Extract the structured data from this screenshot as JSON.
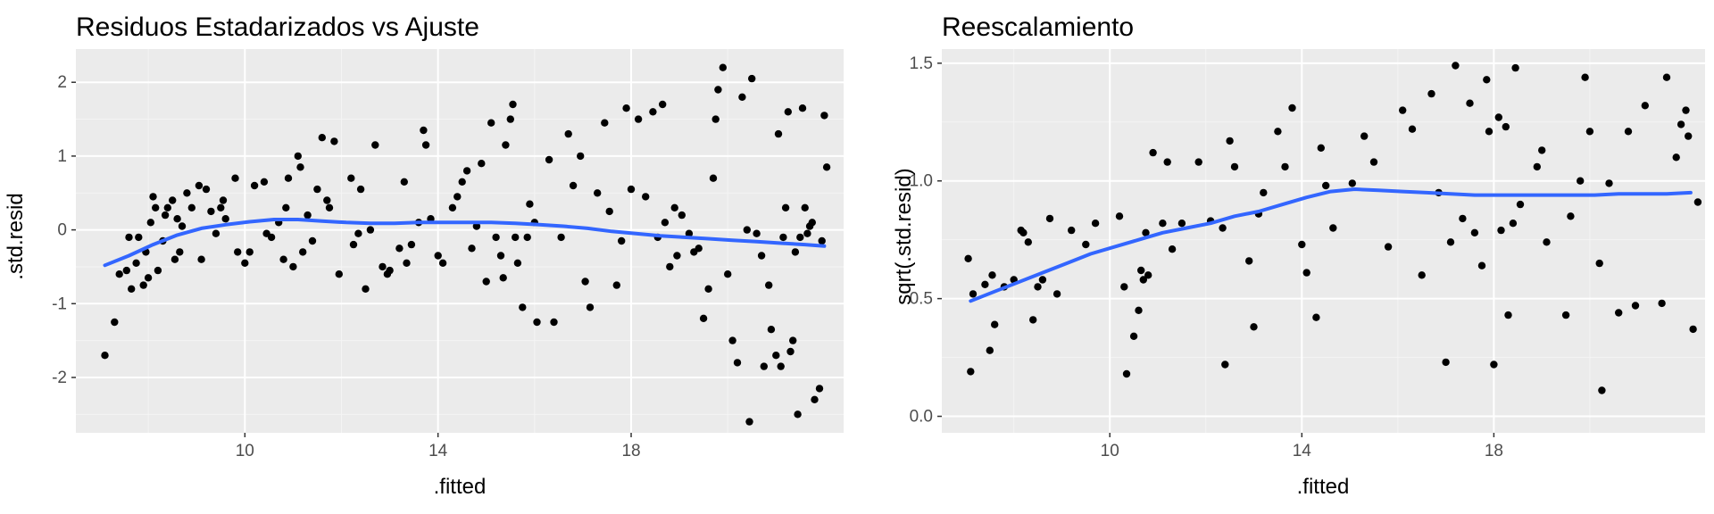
{
  "colors": {
    "panel_bg": "#ebebeb",
    "grid_major": "#ffffff",
    "grid_minor": "#f4f4f4",
    "point": "#000000",
    "smooth": "#3366ff",
    "tick_text": "#4d4d4d",
    "tick_mark": "#333333"
  },
  "chart_data": [
    {
      "type": "scatter",
      "title": "Residuos Estadarizados vs Ajuste",
      "xlabel": ".fitted",
      "ylabel": ".std.resid",
      "xlim": [
        6.5,
        22.4
      ],
      "ylim": [
        -2.75,
        2.45
      ],
      "xticks": [
        10,
        14,
        18
      ],
      "xtick_labels": [
        "10",
        "14",
        "18"
      ],
      "yticks": [
        -2,
        -1,
        0,
        1,
        2
      ],
      "ytick_labels": [
        "-2",
        "-1",
        "0",
        "1",
        "2"
      ],
      "grid": true,
      "points": [
        [
          7.1,
          -1.7
        ],
        [
          7.3,
          -1.25
        ],
        [
          7.4,
          -0.6
        ],
        [
          7.55,
          -0.55
        ],
        [
          7.6,
          -0.1
        ],
        [
          7.65,
          -0.8
        ],
        [
          7.75,
          -0.45
        ],
        [
          7.8,
          -0.1
        ],
        [
          7.9,
          -0.75
        ],
        [
          7.95,
          -0.3
        ],
        [
          8.0,
          -0.65
        ],
        [
          8.05,
          0.1
        ],
        [
          8.1,
          0.45
        ],
        [
          8.15,
          0.3
        ],
        [
          8.2,
          -0.55
        ],
        [
          8.3,
          -0.15
        ],
        [
          8.35,
          0.2
        ],
        [
          8.4,
          0.3
        ],
        [
          8.5,
          0.4
        ],
        [
          8.55,
          -0.4
        ],
        [
          8.6,
          0.15
        ],
        [
          8.65,
          -0.3
        ],
        [
          8.7,
          0.05
        ],
        [
          8.8,
          0.5
        ],
        [
          8.9,
          0.3
        ],
        [
          9.05,
          0.6
        ],
        [
          9.1,
          -0.4
        ],
        [
          9.2,
          0.55
        ],
        [
          9.3,
          0.25
        ],
        [
          9.4,
          -0.05
        ],
        [
          9.5,
          0.3
        ],
        [
          9.55,
          0.4
        ],
        [
          9.6,
          0.15
        ],
        [
          9.8,
          0.7
        ],
        [
          9.85,
          -0.3
        ],
        [
          10.0,
          -0.45
        ],
        [
          10.1,
          -0.3
        ],
        [
          10.2,
          0.6
        ],
        [
          10.4,
          0.65
        ],
        [
          10.45,
          -0.05
        ],
        [
          10.55,
          -0.1
        ],
        [
          10.7,
          0.1
        ],
        [
          10.8,
          -0.4
        ],
        [
          10.85,
          0.3
        ],
        [
          10.9,
          0.7
        ],
        [
          11.0,
          -0.5
        ],
        [
          11.1,
          1.0
        ],
        [
          11.15,
          0.85
        ],
        [
          11.2,
          -0.3
        ],
        [
          11.3,
          0.2
        ],
        [
          11.4,
          -0.15
        ],
        [
          11.5,
          0.55
        ],
        [
          11.6,
          1.25
        ],
        [
          11.7,
          0.4
        ],
        [
          11.75,
          0.3
        ],
        [
          11.85,
          1.2
        ],
        [
          11.95,
          -0.6
        ],
        [
          12.2,
          0.7
        ],
        [
          12.25,
          -0.2
        ],
        [
          12.35,
          -0.05
        ],
        [
          12.4,
          0.55
        ],
        [
          12.5,
          -0.8
        ],
        [
          12.6,
          0.0
        ],
        [
          12.7,
          1.15
        ],
        [
          12.85,
          -0.5
        ],
        [
          12.95,
          -0.6
        ],
        [
          13.0,
          -0.55
        ],
        [
          13.2,
          -0.25
        ],
        [
          13.3,
          0.65
        ],
        [
          13.35,
          -0.45
        ],
        [
          13.45,
          -0.2
        ],
        [
          13.6,
          0.1
        ],
        [
          13.7,
          1.35
        ],
        [
          13.75,
          1.15
        ],
        [
          13.85,
          0.15
        ],
        [
          14.0,
          -0.35
        ],
        [
          14.1,
          -0.45
        ],
        [
          14.3,
          0.3
        ],
        [
          14.4,
          0.45
        ],
        [
          14.5,
          0.65
        ],
        [
          14.6,
          0.8
        ],
        [
          14.7,
          -0.25
        ],
        [
          14.8,
          0.05
        ],
        [
          14.9,
          0.9
        ],
        [
          15.0,
          -0.7
        ],
        [
          15.1,
          1.45
        ],
        [
          15.2,
          -0.1
        ],
        [
          15.3,
          -0.35
        ],
        [
          15.35,
          -0.65
        ],
        [
          15.4,
          1.15
        ],
        [
          15.5,
          1.5
        ],
        [
          15.55,
          1.7
        ],
        [
          15.6,
          -0.1
        ],
        [
          15.65,
          -0.45
        ],
        [
          15.75,
          -1.05
        ],
        [
          15.85,
          -0.1
        ],
        [
          15.9,
          0.35
        ],
        [
          16.0,
          0.1
        ],
        [
          16.05,
          -1.25
        ],
        [
          16.3,
          0.95
        ],
        [
          16.4,
          -1.25
        ],
        [
          16.55,
          -0.1
        ],
        [
          16.7,
          1.3
        ],
        [
          16.8,
          0.6
        ],
        [
          16.95,
          1.0
        ],
        [
          17.05,
          -0.7
        ],
        [
          17.15,
          -1.05
        ],
        [
          17.3,
          0.5
        ],
        [
          17.45,
          1.45
        ],
        [
          17.55,
          0.25
        ],
        [
          17.7,
          -0.75
        ],
        [
          17.8,
          -0.15
        ],
        [
          17.9,
          1.65
        ],
        [
          18.0,
          0.55
        ],
        [
          18.15,
          1.5
        ],
        [
          18.3,
          0.45
        ],
        [
          18.45,
          1.6
        ],
        [
          18.55,
          -0.1
        ],
        [
          18.65,
          1.7
        ],
        [
          18.7,
          0.1
        ],
        [
          18.8,
          -0.5
        ],
        [
          18.9,
          0.3
        ],
        [
          18.95,
          -0.35
        ],
        [
          19.05,
          0.2
        ],
        [
          19.2,
          -0.05
        ],
        [
          19.3,
          -0.3
        ],
        [
          19.4,
          -0.25
        ],
        [
          19.5,
          -1.2
        ],
        [
          19.6,
          -0.8
        ],
        [
          19.7,
          0.7
        ],
        [
          19.75,
          1.5
        ],
        [
          19.8,
          1.9
        ],
        [
          19.9,
          2.2
        ],
        [
          20.0,
          -0.6
        ],
        [
          20.1,
          -1.5
        ],
        [
          20.2,
          -1.8
        ],
        [
          20.3,
          1.8
        ],
        [
          20.4,
          0.0
        ],
        [
          20.5,
          2.05
        ],
        [
          20.6,
          -0.05
        ],
        [
          20.7,
          -0.35
        ],
        [
          20.75,
          -1.85
        ],
        [
          20.85,
          -0.75
        ],
        [
          21.0,
          -1.7
        ],
        [
          21.1,
          -1.85
        ],
        [
          21.2,
          0.3
        ],
        [
          21.3,
          -1.65
        ],
        [
          21.4,
          -0.3
        ],
        [
          21.5,
          -0.1
        ],
        [
          21.6,
          0.3
        ],
        [
          21.7,
          0.05
        ],
        [
          21.8,
          -2.3
        ],
        [
          21.9,
          -2.15
        ],
        [
          22.0,
          1.55
        ],
        [
          20.45,
          -2.6
        ],
        [
          21.45,
          -2.5
        ],
        [
          21.05,
          1.3
        ],
        [
          21.25,
          1.6
        ],
        [
          21.55,
          1.65
        ],
        [
          21.75,
          0.1
        ],
        [
          22.05,
          0.85
        ],
        [
          21.65,
          -0.05
        ],
        [
          20.9,
          -1.35
        ],
        [
          21.35,
          -1.5
        ],
        [
          21.15,
          -0.1
        ],
        [
          21.95,
          -0.15
        ]
      ],
      "smooth": [
        [
          7.1,
          -0.48
        ],
        [
          7.6,
          -0.35
        ],
        [
          8.1,
          -0.2
        ],
        [
          8.6,
          -0.07
        ],
        [
          9.1,
          0.02
        ],
        [
          9.6,
          0.07
        ],
        [
          10.1,
          0.11
        ],
        [
          10.6,
          0.14
        ],
        [
          11.1,
          0.14
        ],
        [
          11.6,
          0.12
        ],
        [
          12.1,
          0.1
        ],
        [
          12.6,
          0.09
        ],
        [
          13.1,
          0.09
        ],
        [
          13.6,
          0.1
        ],
        [
          14.1,
          0.1
        ],
        [
          14.6,
          0.1
        ],
        [
          15.1,
          0.1
        ],
        [
          15.6,
          0.09
        ],
        [
          16.1,
          0.07
        ],
        [
          16.6,
          0.05
        ],
        [
          17.1,
          0.02
        ],
        [
          17.6,
          -0.02
        ],
        [
          18.1,
          -0.05
        ],
        [
          18.6,
          -0.08
        ],
        [
          19.1,
          -0.1
        ],
        [
          19.6,
          -0.12
        ],
        [
          20.1,
          -0.14
        ],
        [
          20.6,
          -0.16
        ],
        [
          21.1,
          -0.18
        ],
        [
          21.6,
          -0.2
        ],
        [
          22.0,
          -0.22
        ]
      ]
    },
    {
      "type": "scatter",
      "title": "Reescalamiento",
      "xlabel": ".fitted",
      "ylabel": "sqrt(.std.resid)",
      "xlim": [
        6.5,
        22.4
      ],
      "ylim": [
        -0.07,
        1.56
      ],
      "xticks": [
        10,
        14,
        18
      ],
      "xtick_labels": [
        "10",
        "14",
        "18"
      ],
      "yticks": [
        0.0,
        0.5,
        1.0,
        1.5
      ],
      "ytick_labels": [
        "0.0",
        "0.5",
        "1.0",
        "1.5"
      ],
      "grid": true,
      "points": [
        [
          7.05,
          0.67
        ],
        [
          7.15,
          0.52
        ],
        [
          7.1,
          0.19
        ],
        [
          7.4,
          0.56
        ],
        [
          7.5,
          0.28
        ],
        [
          7.55,
          0.6
        ],
        [
          7.6,
          0.39
        ],
        [
          7.8,
          0.55
        ],
        [
          8.0,
          0.58
        ],
        [
          8.15,
          0.79
        ],
        [
          8.2,
          0.78
        ],
        [
          8.3,
          0.74
        ],
        [
          8.4,
          0.41
        ],
        [
          8.5,
          0.55
        ],
        [
          8.6,
          0.58
        ],
        [
          8.75,
          0.84
        ],
        [
          8.9,
          0.52
        ],
        [
          9.2,
          0.79
        ],
        [
          9.5,
          0.73
        ],
        [
          9.7,
          0.82
        ],
        [
          10.2,
          0.85
        ],
        [
          10.3,
          0.55
        ],
        [
          10.35,
          0.18
        ],
        [
          10.5,
          0.34
        ],
        [
          10.6,
          0.45
        ],
        [
          10.65,
          0.62
        ],
        [
          10.7,
          0.58
        ],
        [
          10.75,
          0.78
        ],
        [
          10.8,
          0.6
        ],
        [
          10.9,
          1.12
        ],
        [
          11.1,
          0.82
        ],
        [
          11.2,
          1.08
        ],
        [
          11.3,
          0.71
        ],
        [
          11.5,
          0.82
        ],
        [
          11.85,
          1.08
        ],
        [
          12.1,
          0.83
        ],
        [
          12.35,
          0.8
        ],
        [
          12.4,
          0.22
        ],
        [
          12.5,
          1.17
        ],
        [
          12.6,
          1.06
        ],
        [
          12.9,
          0.66
        ],
        [
          13.0,
          0.38
        ],
        [
          13.1,
          0.86
        ],
        [
          13.2,
          0.95
        ],
        [
          13.5,
          1.21
        ],
        [
          13.65,
          1.06
        ],
        [
          13.8,
          1.31
        ],
        [
          14.0,
          0.73
        ],
        [
          14.1,
          0.61
        ],
        [
          14.3,
          0.42
        ],
        [
          14.4,
          1.14
        ],
        [
          14.5,
          0.98
        ],
        [
          14.65,
          0.8
        ],
        [
          15.05,
          0.99
        ],
        [
          15.3,
          1.19
        ],
        [
          15.5,
          1.08
        ],
        [
          15.8,
          0.72
        ],
        [
          16.1,
          1.3
        ],
        [
          16.3,
          1.22
        ],
        [
          16.5,
          0.6
        ],
        [
          16.7,
          1.37
        ],
        [
          16.85,
          0.95
        ],
        [
          17.0,
          0.23
        ],
        [
          17.1,
          0.74
        ],
        [
          17.2,
          1.49
        ],
        [
          17.35,
          0.84
        ],
        [
          17.5,
          1.33
        ],
        [
          17.6,
          0.78
        ],
        [
          17.75,
          0.64
        ],
        [
          17.85,
          1.43
        ],
        [
          17.9,
          1.21
        ],
        [
          18.0,
          0.22
        ],
        [
          18.1,
          1.27
        ],
        [
          18.15,
          0.79
        ],
        [
          18.25,
          1.23
        ],
        [
          18.3,
          0.43
        ],
        [
          18.4,
          0.82
        ],
        [
          18.45,
          1.48
        ],
        [
          18.55,
          0.9
        ],
        [
          18.9,
          1.06
        ],
        [
          19.0,
          1.13
        ],
        [
          19.1,
          0.74
        ],
        [
          19.5,
          0.43
        ],
        [
          19.6,
          0.85
        ],
        [
          19.8,
          1.0
        ],
        [
          19.9,
          1.44
        ],
        [
          20.0,
          1.21
        ],
        [
          20.2,
          0.65
        ],
        [
          20.25,
          0.11
        ],
        [
          20.4,
          0.99
        ],
        [
          20.6,
          0.44
        ],
        [
          20.8,
          1.21
        ],
        [
          20.95,
          0.47
        ],
        [
          21.15,
          1.32
        ],
        [
          21.5,
          0.48
        ],
        [
          21.6,
          1.44
        ],
        [
          21.8,
          1.1
        ],
        [
          21.9,
          1.24
        ],
        [
          22.0,
          1.3
        ],
        [
          22.05,
          1.19
        ],
        [
          22.15,
          0.37
        ],
        [
          22.25,
          0.91
        ]
      ],
      "smooth": [
        [
          7.1,
          0.49
        ],
        [
          7.6,
          0.53
        ],
        [
          8.1,
          0.57
        ],
        [
          8.6,
          0.61
        ],
        [
          9.1,
          0.65
        ],
        [
          9.6,
          0.69
        ],
        [
          10.1,
          0.72
        ],
        [
          10.6,
          0.75
        ],
        [
          11.1,
          0.78
        ],
        [
          11.6,
          0.8
        ],
        [
          12.1,
          0.82
        ],
        [
          12.6,
          0.85
        ],
        [
          13.1,
          0.87
        ],
        [
          13.6,
          0.9
        ],
        [
          14.1,
          0.93
        ],
        [
          14.6,
          0.955
        ],
        [
          15.1,
          0.965
        ],
        [
          15.6,
          0.96
        ],
        [
          16.1,
          0.955
        ],
        [
          16.6,
          0.95
        ],
        [
          17.1,
          0.945
        ],
        [
          17.6,
          0.94
        ],
        [
          18.1,
          0.94
        ],
        [
          18.6,
          0.94
        ],
        [
          19.1,
          0.94
        ],
        [
          19.6,
          0.94
        ],
        [
          20.1,
          0.94
        ],
        [
          20.6,
          0.945
        ],
        [
          21.1,
          0.945
        ],
        [
          21.6,
          0.945
        ],
        [
          22.1,
          0.95
        ]
      ]
    }
  ]
}
